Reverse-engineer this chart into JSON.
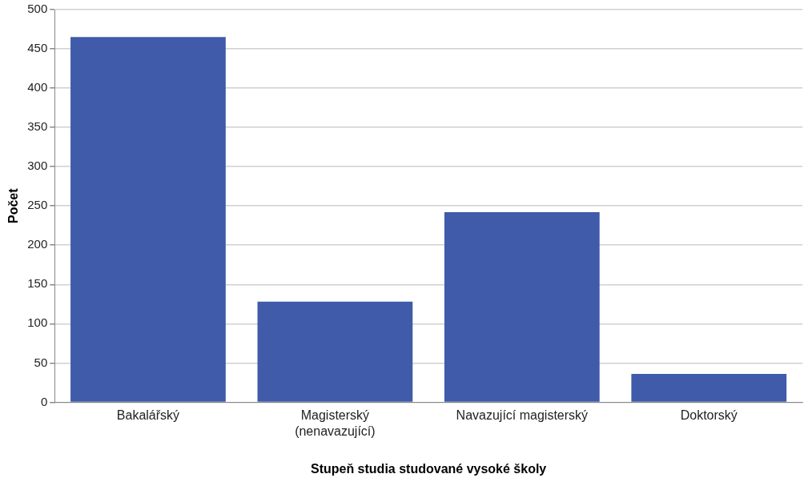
{
  "chart_data": {
    "type": "bar",
    "xlabel": "Stupeň studia studované vysoké školy",
    "ylabel": "Počet",
    "categories": [
      "Bakalářský",
      "Magisterský\n(nenavazující)",
      "Navazující magisterský",
      "Doktorský"
    ],
    "values": [
      465,
      128,
      242,
      36
    ],
    "color": "#3f5ba9",
    "ylim": [
      0,
      500
    ],
    "yticks": [
      0,
      50,
      100,
      150,
      200,
      250,
      300,
      350,
      400,
      450,
      500
    ],
    "grid": "y"
  }
}
